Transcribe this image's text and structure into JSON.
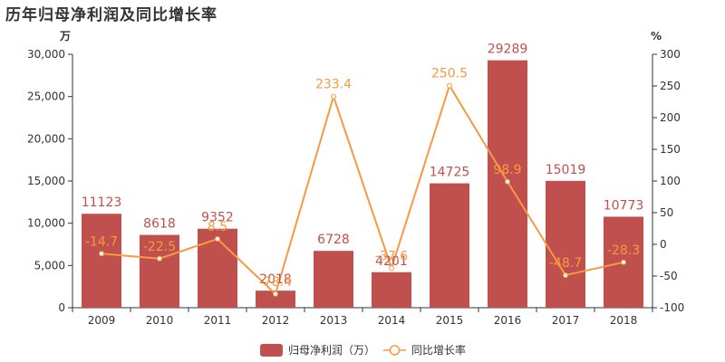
{
  "chart_data": {
    "type": "bar",
    "title": "历年归母净利润及同比增长率",
    "categories": [
      "2009",
      "2010",
      "2011",
      "2012",
      "2013",
      "2014",
      "2015",
      "2016",
      "2017",
      "2018"
    ],
    "series": [
      {
        "name": "归母净利润（万）",
        "type": "bar",
        "axis": "left",
        "color": "#c0504d",
        "values": [
          11123,
          8618,
          9352,
          2018,
          6728,
          4201,
          14725,
          29289,
          15019,
          10773
        ]
      },
      {
        "name": "同比增长率",
        "type": "line",
        "axis": "right",
        "color": "#f59a42",
        "values": [
          -14.7,
          -22.5,
          8.5,
          -78.4,
          233.4,
          -37.6,
          250.5,
          98.9,
          -48.7,
          -28.3
        ]
      }
    ],
    "ylabel": "万",
    "y2label": "%",
    "ylim": [
      0,
      30000
    ],
    "y2lim": [
      -100,
      300
    ],
    "yticks": [
      0,
      5000,
      10000,
      15000,
      20000,
      25000,
      30000
    ],
    "ytick_labels": [
      "0",
      "5,000",
      "10,000",
      "15,000",
      "20,000",
      "25,000",
      "30,000"
    ],
    "y2ticks": [
      -100,
      -50,
      0,
      50,
      100,
      150,
      200,
      250,
      300
    ],
    "grid": false,
    "legend": "bottom-center"
  }
}
